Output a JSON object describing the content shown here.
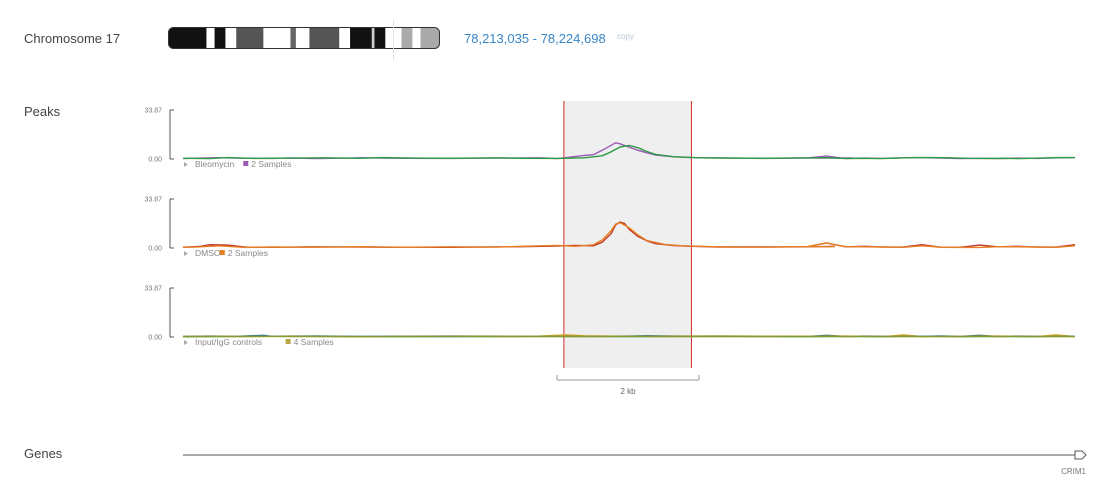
{
  "chromosome": {
    "label": "Chromosome 17",
    "coords": "78,213,035 - 78,224,698",
    "copy_label": "copy",
    "bands": [
      {
        "shade": "#111111",
        "w": 0.14
      },
      {
        "shade": "#ffffff",
        "w": 0.03
      },
      {
        "shade": "#111111",
        "w": 0.04
      },
      {
        "shade": "#ffffff",
        "w": 0.04
      },
      {
        "shade": "#555555",
        "w": 0.1
      },
      {
        "shade": "#ffffff",
        "w": 0.1
      },
      {
        "shade": "#666666",
        "w": 0.02
      },
      {
        "shade": "#ffffff",
        "w": 0.05
      },
      {
        "shade": "#555555",
        "w": 0.11
      },
      {
        "shade": "#ffffff",
        "w": 0.04
      },
      {
        "shade": "#111111",
        "w": 0.08
      },
      {
        "shade": "#cccccc",
        "w": 0.01
      },
      {
        "shade": "#111111",
        "w": 0.04
      },
      {
        "shade": "#ffffff",
        "w": 0.06
      },
      {
        "shade": "#aaaaaa",
        "w": 0.04
      },
      {
        "shade": "#ffffff",
        "w": 0.03
      },
      {
        "shade": "#aaaaaa",
        "w": 0.07
      }
    ]
  },
  "peaks": {
    "label": "Peaks",
    "y_max_label": "33.87",
    "y_min_label": "0.00",
    "y_range": [
      0,
      33.87
    ],
    "x_range": [
      0,
      1
    ],
    "tracks": [
      {
        "legend_name": "Bleomycin",
        "legend_samples": "2 Samples",
        "legend_color": "#9b59b6",
        "series": [
          {
            "color": "#9b59b6",
            "points": [
              [
                0,
                0.3
              ],
              [
                0.02,
                0.6
              ],
              [
                0.04,
                0.9
              ],
              [
                0.07,
                0.5
              ],
              [
                0.1,
                0.4
              ],
              [
                0.12,
                0.7
              ],
              [
                0.15,
                0.3
              ],
              [
                0.2,
                0.8
              ],
              [
                0.25,
                0.5
              ],
              [
                0.3,
                0.4
              ],
              [
                0.35,
                0.6
              ],
              [
                0.4,
                0.8
              ],
              [
                0.42,
                0.3
              ],
              [
                0.43,
                1.0
              ],
              [
                0.45,
                2.5
              ],
              [
                0.46,
                3.0
              ],
              [
                0.47,
                6.0
              ],
              [
                0.48,
                9.5
              ],
              [
                0.485,
                11.2
              ],
              [
                0.49,
                10.5
              ],
              [
                0.5,
                8.2
              ],
              [
                0.51,
                6.0
              ],
              [
                0.52,
                4.3
              ],
              [
                0.53,
                2.7
              ],
              [
                0.55,
                1.5
              ],
              [
                0.57,
                1.0
              ],
              [
                0.6,
                0.8
              ],
              [
                0.65,
                0.4
              ],
              [
                0.7,
                0.7
              ],
              [
                0.72,
                0.6
              ],
              [
                0.75,
                0.7
              ],
              [
                0.7,
                0.7
              ],
              [
                0.71,
                0.6
              ],
              [
                0.75,
                0.7
              ],
              [
                0.7,
                0.7
              ]
            ]
          },
          {
            "color": "#2e9b45",
            "points": [
              [
                0,
                0.5
              ],
              [
                0.03,
                0.3
              ],
              [
                0.05,
                1.0
              ],
              [
                0.08,
                0.4
              ],
              [
                0.12,
                0.6
              ],
              [
                0.16,
                0.8
              ],
              [
                0.2,
                0.5
              ],
              [
                0.22,
                1.0
              ],
              [
                0.26,
                0.6
              ],
              [
                0.3,
                0.5
              ],
              [
                0.35,
                0.8
              ],
              [
                0.38,
                0.5
              ],
              [
                0.42,
                0.4
              ],
              [
                0.45,
                0.8
              ],
              [
                0.47,
                2.2
              ],
              [
                0.48,
                5.0
              ],
              [
                0.49,
                8.3
              ],
              [
                0.5,
                9.4
              ],
              [
                0.51,
                7.8
              ],
              [
                0.52,
                5.2
              ],
              [
                0.53,
                3.2
              ],
              [
                0.55,
                1.6
              ],
              [
                0.58,
                0.8
              ],
              [
                0.6,
                0.7
              ],
              [
                0.65,
                0.5
              ],
              [
                0.7,
                0.8
              ],
              [
                0.72,
                0.9
              ],
              [
                0.72,
                0.9
              ]
            ]
          }
        ]
      },
      {
        "legend_name": "DMSO",
        "legend_samples": "2 Samples",
        "legend_color": "#e67e22",
        "series": [
          {
            "color": "#c0392b",
            "points": [
              [
                0,
                0.5
              ],
              [
                0.02,
                1.2
              ],
              [
                0.03,
                2.3
              ],
              [
                0.05,
                2.0
              ],
              [
                0.07,
                0.6
              ],
              [
                0.1,
                0.5
              ],
              [
                0.15,
                0.8
              ],
              [
                0.2,
                0.6
              ],
              [
                0.3,
                0.5
              ],
              [
                0.38,
                0.9
              ],
              [
                0.42,
                1.4
              ],
              [
                0.44,
                1.8
              ],
              [
                0.46,
                1.5
              ],
              [
                0.47,
                4.0
              ],
              [
                0.48,
                10.0
              ],
              [
                0.485,
                16.0
              ],
              [
                0.49,
                18.0
              ],
              [
                0.495,
                17.0
              ],
              [
                0.5,
                13.0
              ],
              [
                0.51,
                8.0
              ],
              [
                0.52,
                5.0
              ],
              [
                0.53,
                3.0
              ],
              [
                0.55,
                1.7
              ],
              [
                0.57,
                1.2
              ],
              [
                0.6,
                0.7
              ],
              [
                0.65,
                0.7
              ],
              [
                0.7,
                0.8
              ],
              [
                0.73,
                1.2
              ],
              [
                0.7,
                0.8
              ]
            ]
          },
          {
            "color": "#e67e22",
            "points": [
              [
                0,
                0.4
              ],
              [
                0.02,
                0.8
              ],
              [
                0.04,
                1.5
              ],
              [
                0.07,
                0.4
              ],
              [
                0.1,
                0.7
              ],
              [
                0.14,
                0.5
              ],
              [
                0.2,
                0.9
              ],
              [
                0.25,
                0.5
              ],
              [
                0.3,
                0.8
              ],
              [
                0.35,
                0.6
              ],
              [
                0.39,
                1.3
              ],
              [
                0.42,
                1.8
              ],
              [
                0.44,
                1.2
              ],
              [
                0.46,
                2.2
              ],
              [
                0.47,
                5.5
              ],
              [
                0.48,
                12.0
              ],
              [
                0.485,
                16.5
              ],
              [
                0.49,
                17.5
              ],
              [
                0.5,
                14.0
              ],
              [
                0.51,
                9.0
              ],
              [
                0.52,
                5.2
              ],
              [
                0.54,
                2.5
              ],
              [
                0.56,
                1.5
              ],
              [
                0.58,
                1.2
              ],
              [
                0.6,
                0.8
              ],
              [
                0.65,
                0.6
              ],
              [
                0.7,
                1.0
              ],
              [
                0.73,
                0.9
              ],
              [
                0.7,
                1.0
              ]
            ]
          }
        ]
      },
      {
        "legend_name": "Input/IgG controls",
        "legend_samples": "4 Samples",
        "legend_color": "#b5a642",
        "series": [
          {
            "color": "#2e6fa3",
            "points": [
              [
                0,
                0.4
              ],
              [
                0.03,
                0.6
              ],
              [
                0.06,
                0.5
              ],
              [
                0.09,
                1.2
              ],
              [
                0.1,
                0.5
              ],
              [
                0.15,
                0.7
              ],
              [
                0.2,
                0.4
              ],
              [
                0.3,
                0.6
              ],
              [
                0.4,
                0.5
              ],
              [
                0.45,
                0.4
              ],
              [
                0.5,
                0.6
              ],
              [
                0.52,
                0.9
              ],
              [
                0.55,
                0.6
              ],
              [
                0.6,
                0.5
              ],
              [
                0.7,
                0.4
              ]
            ]
          },
          {
            "color": "#d4a017",
            "points": [
              [
                0,
                0.3
              ],
              [
                0.04,
                0.5
              ],
              [
                0.08,
                0.4
              ],
              [
                0.12,
                0.6
              ],
              [
                0.2,
                0.3
              ],
              [
                0.3,
                0.4
              ],
              [
                0.4,
                0.6
              ],
              [
                0.43,
                1.4
              ],
              [
                0.45,
                0.8
              ],
              [
                0.5,
                0.5
              ],
              [
                0.6,
                0.7
              ],
              [
                0.7,
                0.5
              ]
            ]
          },
          {
            "color": "#2f9e8f",
            "points": [
              [
                0,
                0.2
              ],
              [
                0.05,
                0.3
              ],
              [
                0.1,
                0.5
              ],
              [
                0.2,
                0.3
              ],
              [
                0.3,
                0.2
              ],
              [
                0.4,
                0.4
              ],
              [
                0.5,
                0.3
              ],
              [
                0.6,
                0.4
              ],
              [
                0.7,
                0.2
              ]
            ]
          },
          {
            "color": "#8a9a2a",
            "points": [
              [
                0,
                0.3
              ],
              [
                0.1,
                0.4
              ],
              [
                0.2,
                0.2
              ],
              [
                0.3,
                0.5
              ],
              [
                0.4,
                0.3
              ],
              [
                0.5,
                0.4
              ],
              [
                0.6,
                0.3
              ],
              [
                0.7,
                0.3
              ]
            ]
          }
        ]
      }
    ],
    "selection": {
      "x_start": 0.427,
      "x_end": 0.57
    },
    "scale_bar_label": "2 kb"
  },
  "genes": {
    "label": "Genes",
    "gene_name": "CRIM1"
  }
}
